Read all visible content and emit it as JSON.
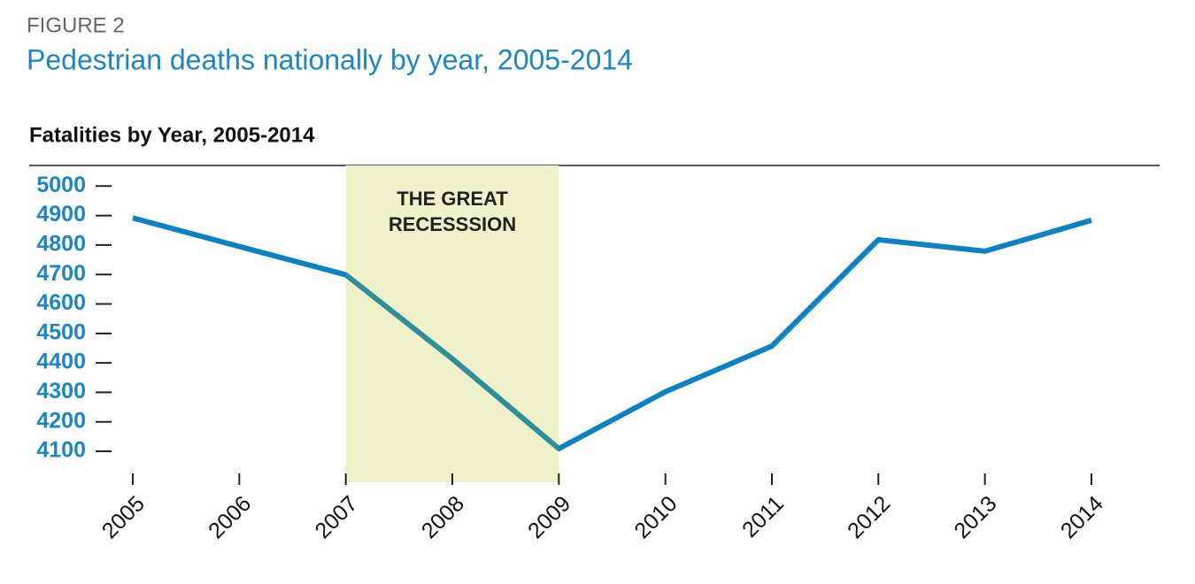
{
  "chart_data": {
    "type": "line",
    "figure_label": "FIGURE 2",
    "title": "Pedestrian deaths nationally by year, 2005-2014",
    "subtitle": "Fatalities by Year, 2005-2014",
    "categories": [
      "2005",
      "2006",
      "2007",
      "2008",
      "2009",
      "2010",
      "2011",
      "2012",
      "2013",
      "2014"
    ],
    "values": [
      4892,
      4795,
      4699,
      4414,
      4109,
      4302,
      4457,
      4818,
      4779,
      4884
    ],
    "color": "#0a82c4",
    "highlight": {
      "from": "2007",
      "to": "2009",
      "color": "#eff2c9",
      "line_color": "#2e8e9c",
      "label": [
        "THE GREAT",
        "RECESSSION"
      ]
    },
    "ylim": [
      3995,
      5070
    ],
    "yticks": [
      4100,
      4200,
      4300,
      4400,
      4500,
      4600,
      4700,
      4800,
      4900,
      5000
    ]
  }
}
